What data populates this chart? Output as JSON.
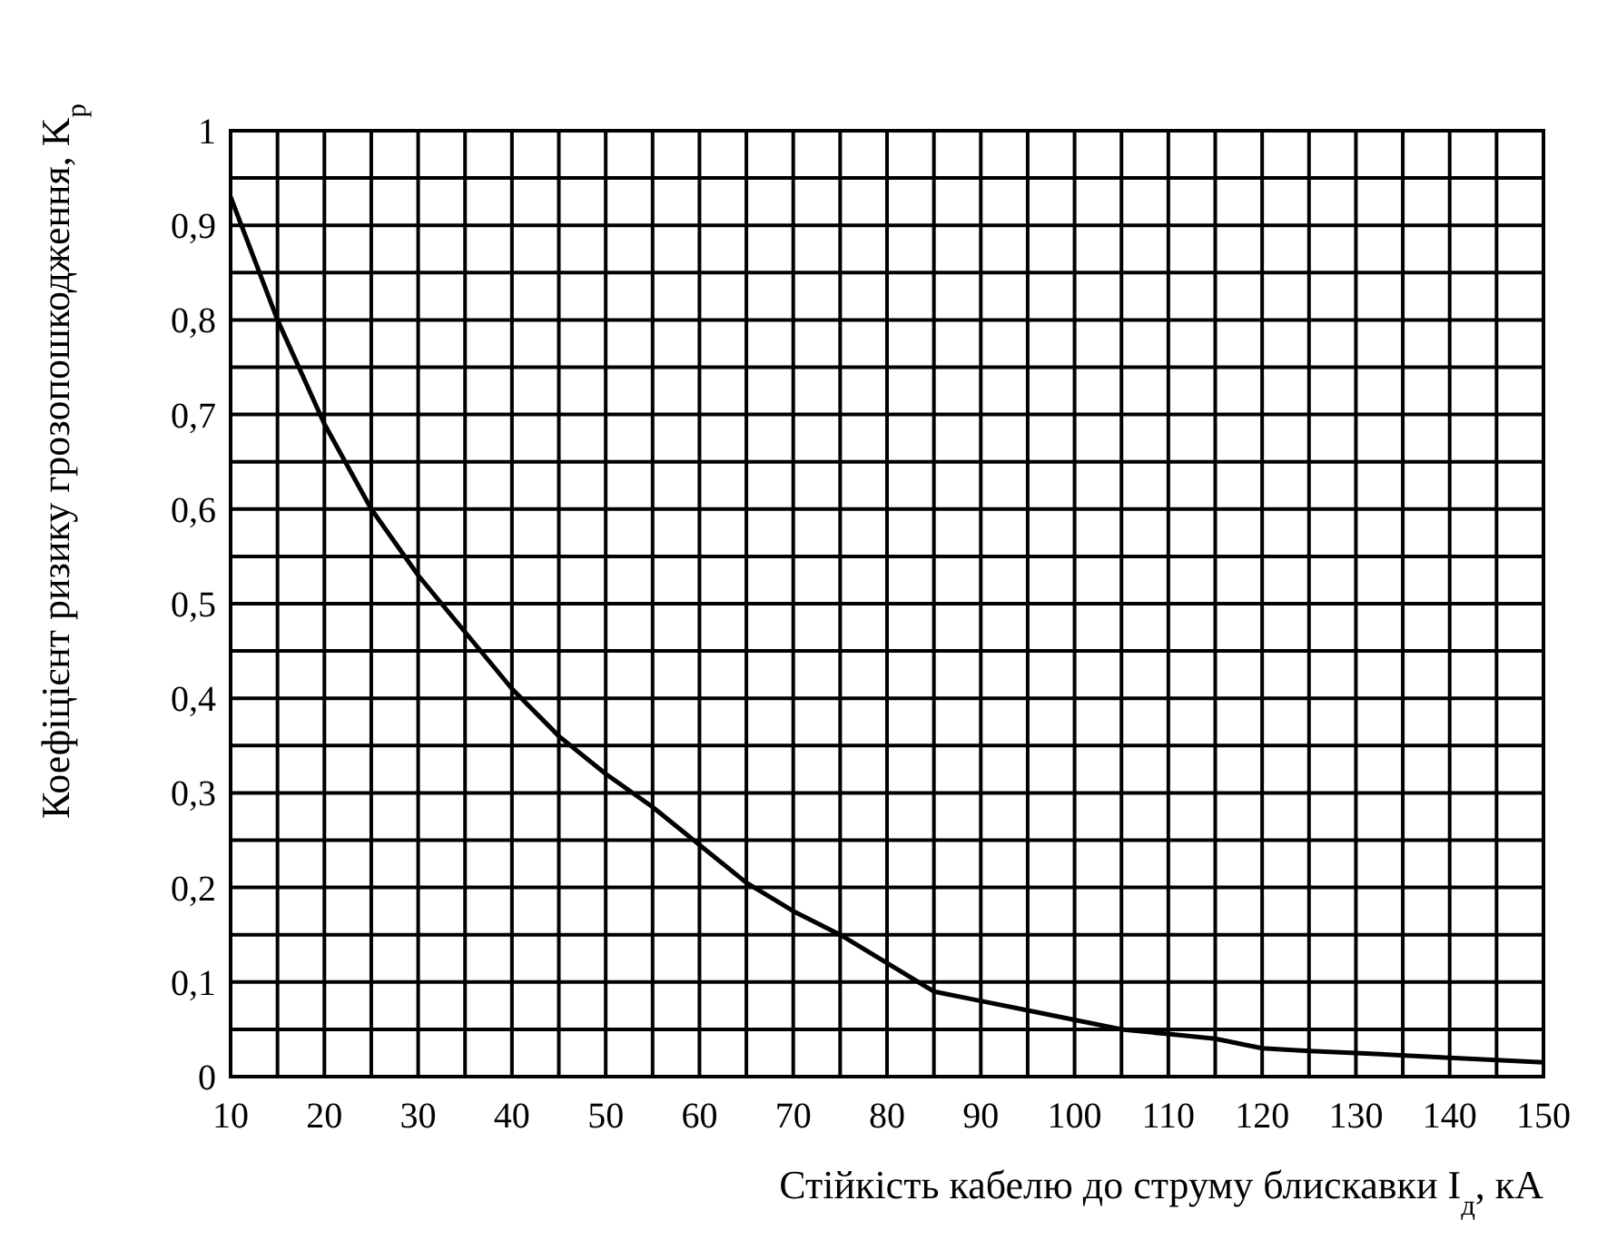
{
  "chart_data": {
    "type": "line",
    "xlabel": "Стійкість кабелю до струму блискавки I$_{д}$, кА",
    "ylabel": "Коефіцієнт ризику грозопошкодження, K$_{р}$",
    "x": [
      10,
      15,
      20,
      25,
      30,
      35,
      40,
      45,
      50,
      55,
      60,
      65,
      70,
      75,
      80,
      85,
      90,
      95,
      100,
      105,
      110,
      115,
      120,
      125,
      130,
      140,
      150
    ],
    "series": [
      {
        "color": "#000000",
        "values": [
          0.93,
          0.8,
          0.69,
          0.6,
          0.53,
          0.47,
          0.41,
          0.36,
          0.32,
          0.285,
          0.245,
          0.205,
          0.175,
          0.15,
          0.12,
          0.09,
          0.08,
          0.07,
          0.06,
          0.05,
          0.045,
          0.04,
          0.03,
          0.027,
          0.025,
          0.02,
          0.015
        ]
      }
    ],
    "xlim": [
      10,
      150
    ],
    "ylim": [
      0,
      1
    ],
    "xticks": [
      10,
      {
        "value": 15,
        "label": null
      },
      20,
      {
        "value": 25,
        "label": null
      },
      30,
      {
        "value": 35,
        "label": null
      },
      40,
      {
        "value": 45,
        "label": null
      },
      50,
      {
        "value": 55,
        "label": null
      },
      60,
      {
        "value": 65,
        "label": null
      },
      70,
      {
        "value": 75,
        "label": null
      },
      80,
      {
        "value": 85,
        "label": null
      },
      90,
      {
        "value": 95,
        "label": null
      },
      100,
      {
        "value": 105,
        "label": null
      },
      110,
      {
        "value": 115,
        "label": null
      },
      120,
      {
        "value": 125,
        "label": null
      },
      130,
      {
        "value": 135,
        "label": null
      },
      140,
      {
        "value": 145,
        "label": null
      },
      150
    ],
    "yticks": [
      0,
      {
        "value": 0.05,
        "label": null
      },
      {
        "value": 0.1,
        "label": "0,1"
      },
      {
        "value": 0.15,
        "label": null
      },
      {
        "value": 0.2,
        "label": "0,2"
      },
      {
        "value": 0.25,
        "label": null
      },
      {
        "value": 0.3,
        "label": "0,3"
      },
      {
        "value": 0.35,
        "label": null
      },
      {
        "value": 0.4,
        "label": "0,4"
      },
      {
        "value": 0.45,
        "label": null
      },
      {
        "value": 0.5,
        "label": "0,5"
      },
      {
        "value": 0.55,
        "label": null
      },
      {
        "value": 0.6,
        "label": "0,6"
      },
      {
        "value": 0.65,
        "label": null
      },
      {
        "value": 0.7,
        "label": "0,7"
      },
      {
        "value": 0.75,
        "label": null
      },
      {
        "value": 0.8,
        "label": "0,8"
      },
      {
        "value": 0.85,
        "label": null
      },
      {
        "value": 0.9,
        "label": "0,9"
      },
      {
        "value": 0.95,
        "label": null
      },
      1
    ],
    "grid": true,
    "marker": "none",
    "line_style": "solid"
  }
}
